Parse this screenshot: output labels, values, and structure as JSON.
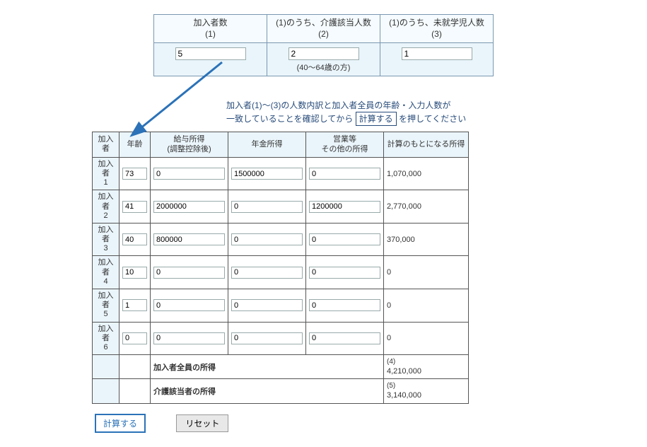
{
  "top": {
    "col1_label1": "加入者数",
    "col1_label2": "(1)",
    "col2_label1": "(1)のうち、介護該当人数",
    "col2_label2": "(2)",
    "col2_sublabel": "(40～64歳の方)",
    "col3_label1": "(1)のうち、未就学児人数",
    "col3_label2": "(3)",
    "val1": "5",
    "val2": "2",
    "val3": "1"
  },
  "instruction": {
    "line1": "加入者(1)～(3)の人数内訳と加入者全員の年齢・入力人数が",
    "line2a": "一致していることを確認してから",
    "boxed": "計算する",
    "line2b": "を押してください"
  },
  "income": {
    "head_member": "加入者",
    "head_age": "年齢",
    "head_salary": "給与所得\n(調整控除後)",
    "head_pension": "年金所得",
    "head_other": "営業等\nその他の所得",
    "head_calc": "計算のもとになる所得",
    "rows": [
      {
        "label": "加入者\n1",
        "age": "73",
        "salary": "0",
        "pension": "1500000",
        "other": "0",
        "calc": "1,070,000"
      },
      {
        "label": "加入者\n2",
        "age": "41",
        "salary": "2000000",
        "pension": "0",
        "other": "1200000",
        "calc": "2,770,000"
      },
      {
        "label": "加入者\n3",
        "age": "40",
        "salary": "800000",
        "pension": "0",
        "other": "0",
        "calc": "370,000"
      },
      {
        "label": "加入者\n4",
        "age": "10",
        "salary": "0",
        "pension": "0",
        "other": "0",
        "calc": "0"
      },
      {
        "label": "加入者\n5",
        "age": "1",
        "salary": "0",
        "pension": "0",
        "other": "0",
        "calc": "0"
      },
      {
        "label": "加入者\n6",
        "age": "0",
        "salary": "0",
        "pension": "0",
        "other": "0",
        "calc": "0"
      }
    ],
    "sum1_label": "加入者全員の所得",
    "sum1_idx": "(4)",
    "sum1_val": "4,210,000",
    "sum2_label": "介護該当者の所得",
    "sum2_idx": "(5)",
    "sum2_val": "3,140,000"
  },
  "buttons": {
    "calc": "計算する",
    "reset": "リセット"
  },
  "colors": {
    "header_bg": "#eaf5fb",
    "border_top": "#7a97b0",
    "border_main": "#555555",
    "instruction_text": "#274b7a",
    "arrow": "#2b72b8"
  }
}
